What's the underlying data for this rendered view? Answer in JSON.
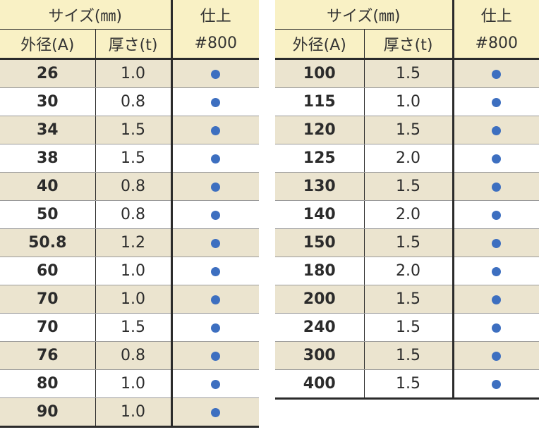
{
  "headers": {
    "size": "サイズ(㎜)",
    "outer_diameter": "外径(A)",
    "thickness": "厚さ(t)",
    "finish": "仕上",
    "finish_grade": "#800"
  },
  "finish_mark_color": "#3d6fc0",
  "left_rows": [
    {
      "od": "26",
      "t": "1.0"
    },
    {
      "od": "30",
      "t": "0.8"
    },
    {
      "od": "34",
      "t": "1.5"
    },
    {
      "od": "38",
      "t": "1.5"
    },
    {
      "od": "40",
      "t": "0.8"
    },
    {
      "od": "50",
      "t": "0.8"
    },
    {
      "od": "50.8",
      "t": "1.2"
    },
    {
      "od": "60",
      "t": "1.0"
    },
    {
      "od": "70",
      "t": "1.0"
    },
    {
      "od": "70",
      "t": "1.5"
    },
    {
      "od": "76",
      "t": "0.8"
    },
    {
      "od": "80",
      "t": "1.0"
    },
    {
      "od": "90",
      "t": "1.0"
    }
  ],
  "right_rows": [
    {
      "od": "100",
      "t": "1.5"
    },
    {
      "od": "115",
      "t": "1.0"
    },
    {
      "od": "120",
      "t": "1.5"
    },
    {
      "od": "125",
      "t": "2.0"
    },
    {
      "od": "130",
      "t": "1.5"
    },
    {
      "od": "140",
      "t": "2.0"
    },
    {
      "od": "150",
      "t": "1.5"
    },
    {
      "od": "180",
      "t": "2.0"
    },
    {
      "od": "200",
      "t": "1.5"
    },
    {
      "od": "240",
      "t": "1.5"
    },
    {
      "od": "300",
      "t": "1.5"
    },
    {
      "od": "400",
      "t": "1.5"
    }
  ]
}
